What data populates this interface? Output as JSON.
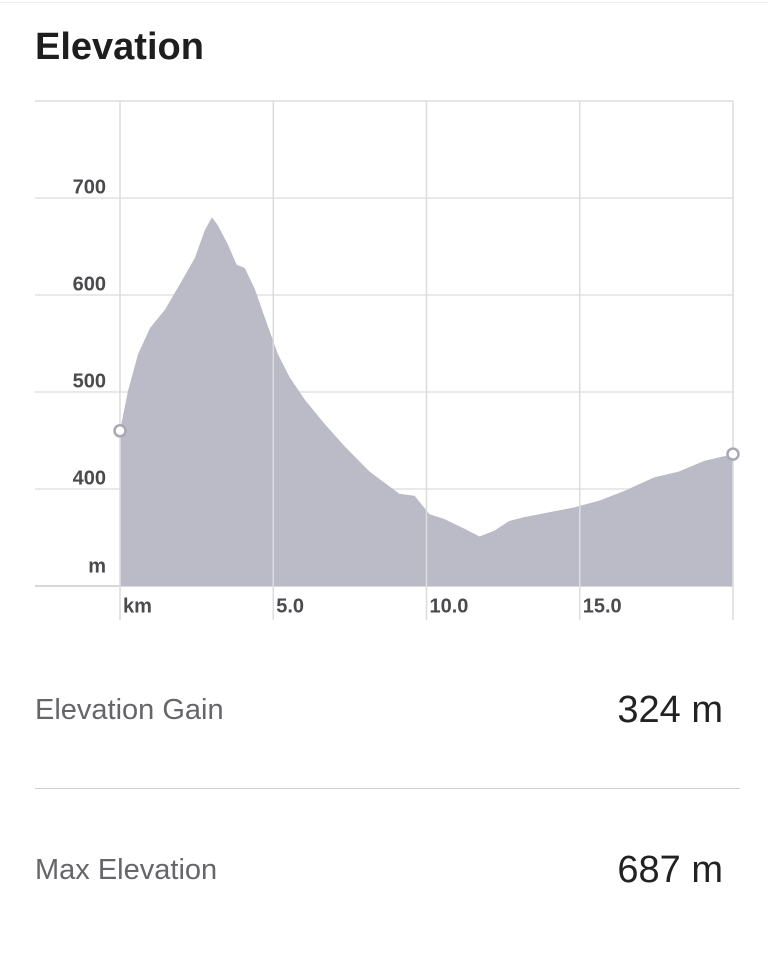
{
  "title": "Elevation",
  "chart_data": {
    "type": "area",
    "y_label": "m",
    "color": "#bbbac7",
    "xlim": [
      0,
      20
    ],
    "ylim": [
      300,
      800
    ],
    "xticks": [
      {
        "value": 0,
        "label": "km"
      },
      {
        "value": 5,
        "label": "5.0"
      },
      {
        "value": 10,
        "label": "10.0"
      },
      {
        "value": 15,
        "label": "15.0"
      },
      {
        "value": 20,
        "label": ""
      }
    ],
    "yticks": [
      400,
      500,
      600,
      700
    ],
    "grid": true,
    "x": [
      0,
      0.26,
      0.59,
      0.98,
      1.47,
      1.95,
      2.44,
      2.77,
      3.0,
      3.19,
      3.52,
      3.81,
      4.07,
      4.4,
      4.72,
      5.15,
      5.54,
      6.03,
      6.68,
      7.33,
      8.14,
      9.12,
      9.61,
      10.1,
      10.59,
      11.24,
      11.73,
      12.21,
      12.7,
      13.19,
      13.68,
      14.17,
      14.82,
      15.64,
      16.45,
      17.43,
      18.24,
      19.06,
      20.0
    ],
    "series": [
      {
        "name": "Elevation",
        "color": "#bbbac7",
        "values": [
          460,
          501,
          539,
          566,
          585,
          611,
          638,
          667,
          680,
          672,
          652,
          631,
          628,
          606,
          577,
          539,
          515,
          492,
          467,
          444,
          418,
          395,
          393,
          374,
          369,
          359,
          351,
          357,
          367,
          371,
          374,
          377,
          381,
          388,
          398,
          412,
          418,
          429,
          436
        ]
      }
    ]
  },
  "stats": [
    {
      "label": "Elevation Gain",
      "value": "324 m"
    },
    {
      "label": "Max Elevation",
      "value": "687 m"
    }
  ]
}
